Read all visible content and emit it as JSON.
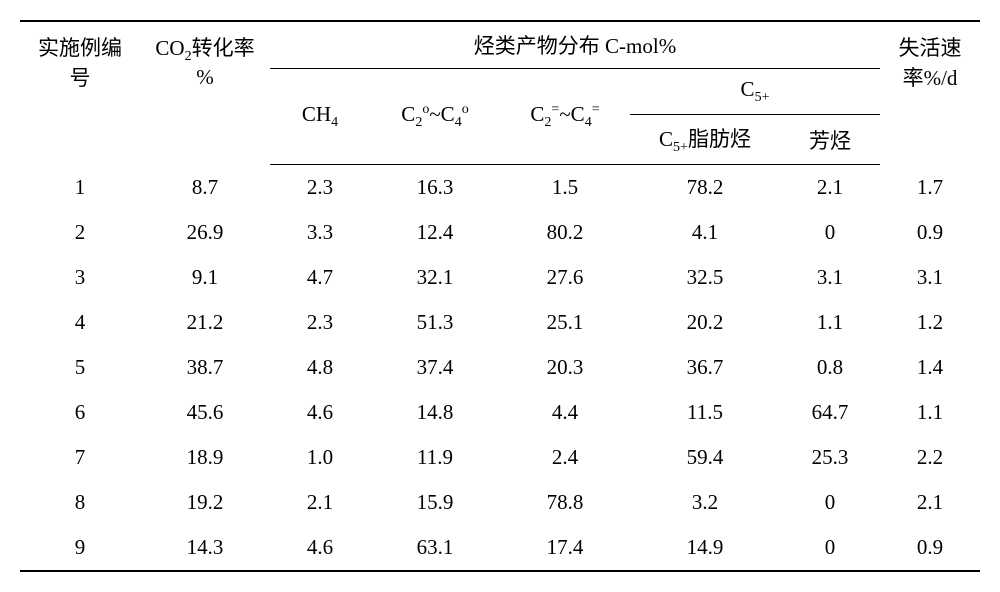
{
  "headers": {
    "col_index_l1": "实施例编",
    "col_index_l2": "号",
    "col_co2_l1": "CO",
    "col_co2_sub": "2",
    "col_co2_l1b": "转化率",
    "col_co2_l2": "%",
    "col_dist": "烃类产物分布 C-mol%",
    "col_ch4": "CH",
    "col_ch4_sub": "4",
    "col_c2c4o_a": "C",
    "col_c2c4o_a_sub": "2",
    "col_c2c4o_a_sup": "o",
    "col_c2c4o_tilde": "~C",
    "col_c2c4o_b_sub": "4",
    "col_c2c4o_b_sup": "o",
    "col_c2c4e_a": "C",
    "col_c2c4e_a_sub": "2",
    "col_c2c4e_a_sup": "=",
    "col_c2c4e_tilde": "~C",
    "col_c2c4e_b_sub": "4",
    "col_c2c4e_b_sup": "=",
    "col_c5plus": "C",
    "col_c5plus_sub": "5+",
    "col_c5plus_ali_a": "C",
    "col_c5plus_ali_sub": "5+",
    "col_c5plus_ali_b": "脂肪烃",
    "col_aromatic": "芳烃",
    "col_deact_l1": "失活速",
    "col_deact_l2": "率%/d"
  },
  "rows": [
    {
      "idx": "1",
      "co2": "8.7",
      "ch4": "2.3",
      "c2c4o": "16.3",
      "c2c4e": "1.5",
      "c5ali": "78.2",
      "aro": "2.1",
      "deact": "1.7"
    },
    {
      "idx": "2",
      "co2": "26.9",
      "ch4": "3.3",
      "c2c4o": "12.4",
      "c2c4e": "80.2",
      "c5ali": "4.1",
      "aro": "0",
      "deact": "0.9"
    },
    {
      "idx": "3",
      "co2": "9.1",
      "ch4": "4.7",
      "c2c4o": "32.1",
      "c2c4e": "27.6",
      "c5ali": "32.5",
      "aro": "3.1",
      "deact": "3.1"
    },
    {
      "idx": "4",
      "co2": "21.2",
      "ch4": "2.3",
      "c2c4o": "51.3",
      "c2c4e": "25.1",
      "c5ali": "20.2",
      "aro": "1.1",
      "deact": "1.2"
    },
    {
      "idx": "5",
      "co2": "38.7",
      "ch4": "4.8",
      "c2c4o": "37.4",
      "c2c4e": "20.3",
      "c5ali": "36.7",
      "aro": "0.8",
      "deact": "1.4"
    },
    {
      "idx": "6",
      "co2": "45.6",
      "ch4": "4.6",
      "c2c4o": "14.8",
      "c2c4e": "4.4",
      "c5ali": "11.5",
      "aro": "64.7",
      "deact": "1.1"
    },
    {
      "idx": "7",
      "co2": "18.9",
      "ch4": "1.0",
      "c2c4o": "11.9",
      "c2c4e": "2.4",
      "c5ali": "59.4",
      "aro": "25.3",
      "deact": "2.2"
    },
    {
      "idx": "8",
      "co2": "19.2",
      "ch4": "2.1",
      "c2c4o": "15.9",
      "c2c4e": "78.8",
      "c5ali": "3.2",
      "aro": "0",
      "deact": "2.1"
    },
    {
      "idx": "9",
      "co2": "14.3",
      "ch4": "4.6",
      "c2c4o": "63.1",
      "c2c4e": "17.4",
      "c5ali": "14.9",
      "aro": "0",
      "deact": "0.9"
    }
  ]
}
